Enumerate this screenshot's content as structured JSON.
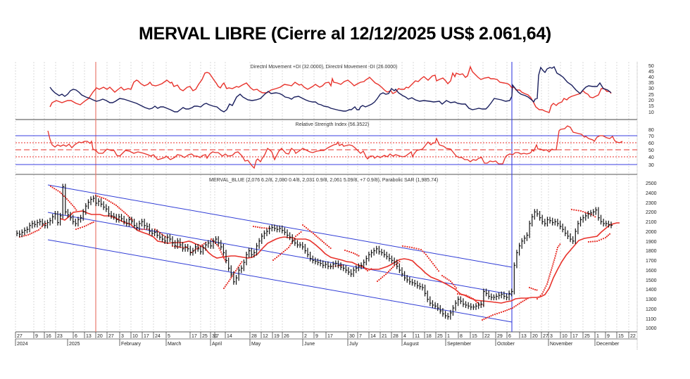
{
  "title": "MERVAL LIBRE (Cierre al 12/12/2025 US$ 2.061,64)",
  "colors": {
    "plus_di": "#e8322b",
    "minus_di": "#1a1f5e",
    "rsi": "#e8322b",
    "channel": "#2f3cd6",
    "sar": "#e8322b",
    "ma": "#e8322b",
    "bars": "#111111",
    "marker_red": "#e87a6e",
    "marker_blue": "#3a3fe0"
  },
  "panels": {
    "dmi": {
      "label": "Directnl Movement +DI (32.0000), Directnl Movement -DI (26.0000)",
      "axis_ticks": [
        "50",
        "45",
        "40",
        "35",
        "30",
        "25",
        "20",
        "15",
        "10"
      ]
    },
    "rsi": {
      "label": "Relative Strength Index (56.3522)",
      "axis_ticks": [
        "80",
        "70",
        "60",
        "50",
        "40",
        "30"
      ]
    },
    "price": {
      "label": "MERVAL_BLUE (2,076 6.2/8, 2,080 0.4/8, 2,031 0.9/8, 2,061 5.09/8, +7 0.9/8), Parabolic SAR (1,985.74)",
      "axis_ticks": [
        "2500",
        "2400",
        "2300",
        "2200",
        "2100",
        "2000",
        "1900",
        "1800",
        "1700",
        "1600",
        "1500",
        "1400",
        "1300",
        "1200",
        "1100",
        "1000"
      ]
    }
  },
  "x_axis": {
    "day_ticks": [
      "27",
      "9",
      "16",
      "23",
      "6",
      "13",
      "20",
      "27",
      "3",
      "10",
      "17",
      "24",
      "5",
      "17",
      "25",
      "31",
      "7",
      "14",
      "28",
      "12",
      "19",
      "26",
      "2",
      "9",
      "17",
      "30",
      "7",
      "14",
      "21",
      "28",
      "4",
      "11",
      "18",
      "25",
      "1",
      "8",
      "15",
      "22",
      "29",
      "6",
      "13",
      "20",
      "27",
      "3",
      "10",
      "17",
      "25",
      "1",
      "9",
      "15",
      "22"
    ],
    "period_labels": [
      "2024",
      "2025",
      "February",
      "March",
      "April",
      "May",
      "June",
      "July",
      "August",
      "September",
      "October",
      "November",
      "December"
    ]
  },
  "chart_data": [
    {
      "type": "line",
      "title": "Directnl Movement +DI (32.0000), Directnl Movement -DI (26.0000)",
      "ylim": [
        5,
        52
      ],
      "x": [
        "2024-12-16",
        "2025-01-06",
        "2025-01-20",
        "2025-02-10",
        "2025-03-05",
        "2025-03-31",
        "2025-04-14",
        "2025-05-05",
        "2025-05-26",
        "2025-06-17",
        "2025-07-07",
        "2025-07-28",
        "2025-08-18",
        "2025-09-08",
        "2025-09-29",
        "2025-10-06",
        "2025-10-20",
        "2025-11-03",
        "2025-11-17",
        "2025-12-01",
        "2025-12-12"
      ],
      "series": [
        {
          "name": "+DI",
          "values": [
            16,
            22,
            28,
            38,
            36,
            34,
            48,
            30,
            34,
            30,
            28,
            22,
            35,
            42,
            40,
            30,
            18,
            10,
            22,
            26,
            32
          ]
        },
        {
          "name": "-DI",
          "values": [
            32,
            26,
            22,
            16,
            18,
            14,
            6,
            26,
            24,
            30,
            12,
            10,
            24,
            16,
            20,
            30,
            22,
            50,
            36,
            30,
            26
          ]
        }
      ],
      "grid": true,
      "legend_position": "top-center"
    },
    {
      "type": "line",
      "title": "Relative Strength Index (56.3522)",
      "ylim": [
        25,
        85
      ],
      "reference_lines": [
        30,
        40,
        50,
        60,
        70
      ],
      "x": [
        "2024-12-16",
        "2024-12-23",
        "2025-01-06",
        "2025-01-20",
        "2025-02-10",
        "2025-03-05",
        "2025-03-31",
        "2025-04-14",
        "2025-05-05",
        "2025-05-26",
        "2025-06-17",
        "2025-07-07",
        "2025-07-28",
        "2025-08-18",
        "2025-09-08",
        "2025-09-29",
        "2025-10-06",
        "2025-10-20",
        "2025-11-03",
        "2025-11-17",
        "2025-12-01",
        "2025-12-12"
      ],
      "series": [
        {
          "name": "RSI",
          "values": [
            75,
            55,
            58,
            48,
            46,
            42,
            30,
            52,
            56,
            61,
            48,
            44,
            50,
            60,
            40,
            30,
            45,
            55,
            83,
            68,
            65,
            56
          ]
        }
      ],
      "grid": true
    },
    {
      "type": "bar",
      "subtype": "ohlc",
      "title": "MERVAL_BLUE (2,076 6.2/8, 2,080 0.4/8, 2,031 0.9/8, 2,061 5.09/8, +7 0.9/8), Parabolic SAR (1,985.74)",
      "ylim": [
        1000,
        2550
      ],
      "x": [
        "2024-11-27",
        "2024-12-09",
        "2024-12-16",
        "2024-12-23",
        "2025-01-06",
        "2025-01-20",
        "2025-02-03",
        "2025-02-17",
        "2025-03-05",
        "2025-03-17",
        "2025-03-31",
        "2025-04-07",
        "2025-04-14",
        "2025-04-28",
        "2025-05-12",
        "2025-05-26",
        "2025-06-09",
        "2025-06-17",
        "2025-06-30",
        "2025-07-14",
        "2025-07-28",
        "2025-08-04",
        "2025-08-18",
        "2025-09-01",
        "2025-09-15",
        "2025-09-22",
        "2025-09-29",
        "2025-10-06",
        "2025-10-20",
        "2025-10-27",
        "2025-11-03",
        "2025-11-17",
        "2025-11-25",
        "2025-12-01",
        "2025-12-09",
        "2025-12-12"
      ],
      "series": [
        {
          "name": "Close",
          "values": [
            1970,
            2090,
            2460,
            2150,
            2330,
            2130,
            2120,
            1980,
            1810,
            1840,
            1880,
            1540,
            1820,
            1820,
            2030,
            2010,
            1840,
            1690,
            1620,
            1600,
            1650,
            1810,
            1650,
            1440,
            1250,
            1150,
            1230,
            1300,
            1420,
            1940,
            2150,
            2080,
            1920,
            2140,
            2080,
            2062
          ]
        },
        {
          "name": "Moving Average",
          "values": [
            null,
            null,
            null,
            2120,
            2150,
            2200,
            2150,
            2040,
            1920,
            1860,
            1870,
            1780,
            1770,
            1820,
            1950,
            2000,
            1940,
            1830,
            1750,
            1670,
            1610,
            1680,
            1710,
            1550,
            1380,
            1290,
            1270,
            1290,
            1310,
            1480,
            1800,
            1960,
            2000,
            2020,
            2050,
            2060
          ]
        },
        {
          "name": "Parabolic SAR",
          "values": [
            1940,
            1980,
            2440,
            2000,
            2380,
            2180,
            2160,
            1990,
            1850,
            1850,
            1980,
            1500,
            1900,
            1930,
            2000,
            2060,
            1990,
            1740,
            1620,
            1600,
            1800,
            1850,
            1880,
            1470,
            1150,
            1120,
            1200,
            1230,
            1300,
            1350,
            2200,
            2180,
            2210,
            1880,
            1960,
            1986
          ]
        }
      ],
      "channel_lines": {
        "upper": {
          "from": [
            "2024-12-16",
            2470
          ],
          "to": [
            "2025-10-06",
            1620
          ]
        },
        "middle": {
          "from": [
            "2024-12-16",
            2170
          ],
          "to": [
            "2025-10-06",
            1330
          ]
        },
        "lower": {
          "from": [
            "2024-12-16",
            1910
          ],
          "to": [
            "2025-10-06",
            1070
          ]
        }
      },
      "vertical_markers": [
        {
          "date": "2025-01-20",
          "color": "red"
        },
        {
          "date": "2025-10-06",
          "color": "blue"
        }
      ],
      "last_close": 2061.64,
      "grid": true
    }
  ]
}
